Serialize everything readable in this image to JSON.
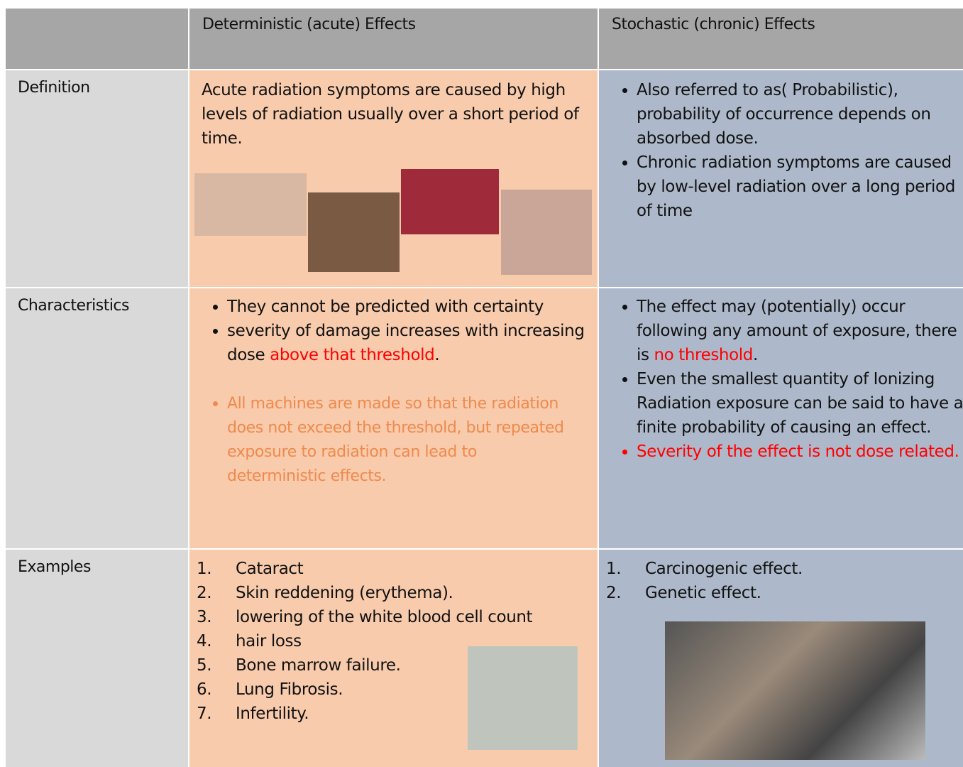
{
  "table": {
    "header": [
      "Deterministic (acute) Effects",
      "Stochastic (chronic) Effects"
    ],
    "rows": [
      {
        "label": "Definition",
        "deterministic": {
          "text": "Acute radiation symptoms are caused by high levels of radiation usually over a short period of time."
        },
        "stochastic": {
          "bullets": [
            [
              "Also referred to as( Probabilistic), probability of occurrence depends on absorbed dose."
            ],
            [
              "Chronic radiation symptoms are caused by low-level radiation over a long period of time"
            ]
          ]
        }
      },
      {
        "label": "Characteristics",
        "deterministic": {
          "bullets": [
            [
              "They cannot be predicted with certainty"
            ],
            [
              "severity of damage increases with increasing dose ",
              "above that threshold",
              "."
            ]
          ],
          "note": "All machines are made so that the radiation does not exceed the threshold, but repeated exposure to radiation can lead to deterministic effects."
        },
        "stochastic": {
          "bullets": [
            [
              "The effect may (potentially) occur following any amount of exposure, there is ",
              "no threshold",
              "."
            ],
            [
              "Even the smallest quantity of Ionizing Radiation exposure can be said to have a finite probability of causing an effect."
            ],
            [
              "Severity of the effect is not dose related."
            ]
          ]
        }
      },
      {
        "label": "Examples",
        "deterministic": {
          "items": [
            "Cataract",
            "Skin reddening (erythema).",
            "lowering of the white blood cell count",
            "hair loss",
            "Bone marrow failure.",
            "Lung Fibrosis.",
            "Infertility."
          ]
        },
        "stochastic": {
          "items": [
            "Carcinogenic effect.",
            "Genetic effect."
          ]
        }
      }
    ]
  }
}
